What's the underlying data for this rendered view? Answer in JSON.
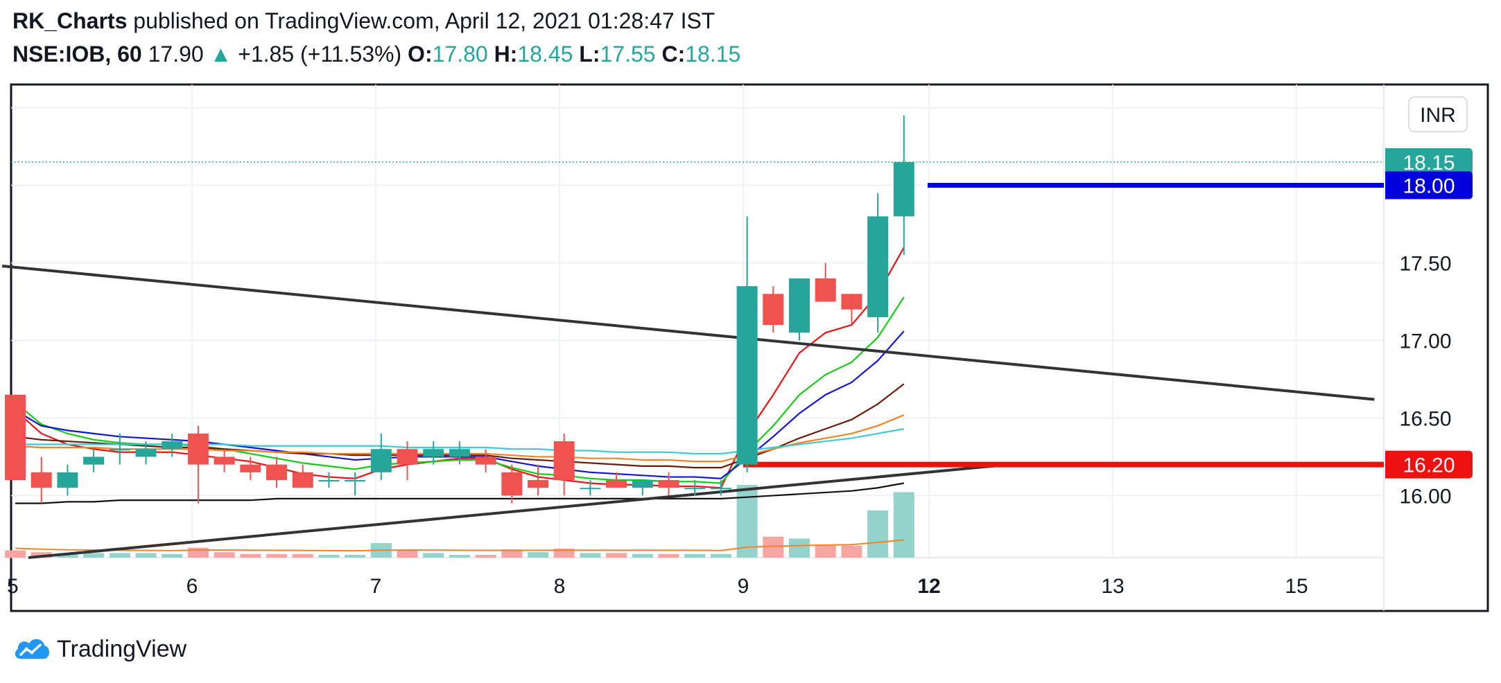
{
  "header": {
    "publisher": "RK_Charts",
    "published_text": "published on TradingView.com, April 12, 2021 01:28:47 IST",
    "symbol": "NSE:IOB, 60",
    "last": "17.90",
    "change": "+1.85 (+11.53%)",
    "o_label": "O:",
    "o_value": "17.80",
    "h_label": "H:",
    "h_value": "18.45",
    "l_label": "L:",
    "l_value": "17.55",
    "c_label": "C:",
    "c_value": "18.15"
  },
  "footer": {
    "brand": "TradingView"
  },
  "colors": {
    "up": "#26a69a",
    "down": "#ef5350",
    "up_vol": "#94d2cc",
    "down_vol": "#f7a5a3",
    "blue_level": "#0000dd",
    "red_level": "#ee1111"
  },
  "chart_data": {
    "type": "candlestick",
    "currency": "INR",
    "y_ticks": [
      "16.00",
      "16.50",
      "17.00",
      "17.50"
    ],
    "ylim": [
      15.6,
      18.65
    ],
    "x_ticks": [
      "6",
      "7",
      "8",
      "9",
      "12",
      "13",
      "15"
    ],
    "current_price_label": "18.15",
    "levels": [
      {
        "label": "18.00",
        "value": 18.0,
        "color": "#0000dd"
      },
      {
        "label": "16.20",
        "value": 16.2,
        "color": "#ee1111"
      }
    ],
    "candles": [
      {
        "o": 16.65,
        "h": 16.65,
        "l": 16.1,
        "c": 16.1
      },
      {
        "o": 16.15,
        "h": 16.25,
        "l": 15.95,
        "c": 16.05
      },
      {
        "o": 16.05,
        "h": 16.2,
        "l": 16.0,
        "c": 16.15
      },
      {
        "o": 16.2,
        "h": 16.3,
        "l": 16.15,
        "c": 16.25
      },
      {
        "o": 16.3,
        "h": 16.4,
        "l": 16.2,
        "c": 16.3
      },
      {
        "o": 16.25,
        "h": 16.35,
        "l": 16.2,
        "c": 16.3
      },
      {
        "o": 16.3,
        "h": 16.4,
        "l": 16.25,
        "c": 16.35
      },
      {
        "o": 16.4,
        "h": 16.45,
        "l": 15.95,
        "c": 16.2
      },
      {
        "o": 16.25,
        "h": 16.3,
        "l": 16.15,
        "c": 16.2
      },
      {
        "o": 16.2,
        "h": 16.25,
        "l": 16.1,
        "c": 16.15
      },
      {
        "o": 16.2,
        "h": 16.25,
        "l": 16.05,
        "c": 16.1
      },
      {
        "o": 16.15,
        "h": 16.2,
        "l": 16.05,
        "c": 16.05
      },
      {
        "o": 16.1,
        "h": 16.15,
        "l": 16.05,
        "c": 16.1
      },
      {
        "o": 16.1,
        "h": 16.15,
        "l": 16.0,
        "c": 16.1
      },
      {
        "o": 16.15,
        "h": 16.4,
        "l": 16.1,
        "c": 16.3
      },
      {
        "o": 16.3,
        "h": 16.35,
        "l": 16.1,
        "c": 16.2
      },
      {
        "o": 16.25,
        "h": 16.35,
        "l": 16.2,
        "c": 16.3
      },
      {
        "o": 16.25,
        "h": 16.35,
        "l": 16.2,
        "c": 16.3
      },
      {
        "o": 16.25,
        "h": 16.3,
        "l": 16.15,
        "c": 16.2
      },
      {
        "o": 16.15,
        "h": 16.2,
        "l": 15.95,
        "c": 16.0
      },
      {
        "o": 16.1,
        "h": 16.2,
        "l": 16.0,
        "c": 16.05
      },
      {
        "o": 16.35,
        "h": 16.4,
        "l": 16.0,
        "c": 16.1
      },
      {
        "o": 16.05,
        "h": 16.1,
        "l": 16.0,
        "c": 16.05
      },
      {
        "o": 16.1,
        "h": 16.15,
        "l": 16.05,
        "c": 16.05
      },
      {
        "o": 16.05,
        "h": 16.1,
        "l": 16.0,
        "c": 16.1
      },
      {
        "o": 16.1,
        "h": 16.15,
        "l": 16.0,
        "c": 16.05
      },
      {
        "o": 16.05,
        "h": 16.1,
        "l": 16.0,
        "c": 16.05
      },
      {
        "o": 16.05,
        "h": 16.1,
        "l": 16.0,
        "c": 16.05
      },
      {
        "o": 16.2,
        "h": 17.8,
        "l": 16.15,
        "c": 17.35
      },
      {
        "o": 17.3,
        "h": 17.35,
        "l": 17.05,
        "c": 17.1
      },
      {
        "o": 17.05,
        "h": 17.4,
        "l": 17.0,
        "c": 17.4
      },
      {
        "o": 17.4,
        "h": 17.5,
        "l": 17.25,
        "c": 17.25
      },
      {
        "o": 17.3,
        "h": 17.3,
        "l": 17.1,
        "c": 17.2
      },
      {
        "o": 17.15,
        "h": 17.95,
        "l": 17.05,
        "c": 17.8
      },
      {
        "o": 17.8,
        "h": 18.45,
        "l": 17.55,
        "c": 18.15
      }
    ],
    "volume": [
      {
        "v": 0.8,
        "dir": "down"
      },
      {
        "v": 0.6,
        "dir": "down"
      },
      {
        "v": 0.5,
        "dir": "up"
      },
      {
        "v": 0.5,
        "dir": "up"
      },
      {
        "v": 0.5,
        "dir": "up"
      },
      {
        "v": 0.5,
        "dir": "up"
      },
      {
        "v": 0.4,
        "dir": "up"
      },
      {
        "v": 1.1,
        "dir": "down"
      },
      {
        "v": 0.6,
        "dir": "down"
      },
      {
        "v": 0.4,
        "dir": "down"
      },
      {
        "v": 0.4,
        "dir": "down"
      },
      {
        "v": 0.4,
        "dir": "down"
      },
      {
        "v": 0.3,
        "dir": "up"
      },
      {
        "v": 0.3,
        "dir": "up"
      },
      {
        "v": 1.6,
        "dir": "up"
      },
      {
        "v": 0.8,
        "dir": "down"
      },
      {
        "v": 0.5,
        "dir": "up"
      },
      {
        "v": 0.3,
        "dir": "up"
      },
      {
        "v": 0.3,
        "dir": "down"
      },
      {
        "v": 0.9,
        "dir": "down"
      },
      {
        "v": 0.6,
        "dir": "up"
      },
      {
        "v": 1.0,
        "dir": "down"
      },
      {
        "v": 0.5,
        "dir": "up"
      },
      {
        "v": 0.5,
        "dir": "down"
      },
      {
        "v": 0.4,
        "dir": "up"
      },
      {
        "v": 0.4,
        "dir": "down"
      },
      {
        "v": 0.4,
        "dir": "up"
      },
      {
        "v": 0.4,
        "dir": "up"
      },
      {
        "v": 8.0,
        "dir": "up"
      },
      {
        "v": 2.3,
        "dir": "down"
      },
      {
        "v": 2.1,
        "dir": "up"
      },
      {
        "v": 1.4,
        "dir": "down"
      },
      {
        "v": 1.3,
        "dir": "down"
      },
      {
        "v": 5.2,
        "dir": "up"
      },
      {
        "v": 7.2,
        "dir": "up"
      }
    ],
    "moving_averages": [
      {
        "color": "#ee1111",
        "values": [
          16.55,
          16.4,
          16.33,
          16.3,
          16.28,
          16.28,
          16.28,
          16.26,
          16.24,
          16.22,
          16.18,
          16.14,
          16.12,
          16.11,
          16.17,
          16.2,
          16.22,
          16.24,
          16.24,
          16.17,
          16.12,
          16.1,
          16.08,
          16.07,
          16.07,
          16.06,
          16.06,
          16.05,
          16.4,
          16.65,
          16.92,
          17.05,
          17.1,
          17.3,
          17.6
        ]
      },
      {
        "color": "#11cc11",
        "values": [
          16.6,
          16.46,
          16.4,
          16.36,
          16.34,
          16.33,
          16.33,
          16.32,
          16.3,
          16.27,
          16.24,
          16.21,
          16.19,
          16.17,
          16.2,
          16.21,
          16.22,
          16.23,
          16.23,
          16.18,
          16.14,
          16.13,
          16.11,
          16.1,
          16.1,
          16.09,
          16.09,
          16.08,
          16.28,
          16.45,
          16.65,
          16.78,
          16.86,
          17.02,
          17.28
        ]
      },
      {
        "color": "#1111dd",
        "values": [
          16.55,
          16.45,
          16.42,
          16.4,
          16.38,
          16.37,
          16.36,
          16.35,
          16.33,
          16.31,
          16.29,
          16.27,
          16.25,
          16.23,
          16.24,
          16.25,
          16.25,
          16.25,
          16.25,
          16.22,
          16.19,
          16.17,
          16.15,
          16.14,
          16.13,
          16.12,
          16.12,
          16.11,
          16.24,
          16.38,
          16.53,
          16.65,
          16.73,
          16.87,
          17.06
        ]
      },
      {
        "color": "#6b1a0a",
        "values": [
          16.38,
          16.36,
          16.35,
          16.34,
          16.33,
          16.32,
          16.31,
          16.31,
          16.3,
          16.29,
          16.28,
          16.27,
          16.27,
          16.26,
          16.26,
          16.26,
          16.26,
          16.26,
          16.26,
          16.24,
          16.23,
          16.22,
          16.21,
          16.2,
          16.19,
          16.19,
          16.18,
          16.18,
          16.24,
          16.3,
          16.37,
          16.43,
          16.49,
          16.59,
          16.72
        ]
      },
      {
        "color": "#f58220",
        "values": [
          16.32,
          16.31,
          16.31,
          16.31,
          16.3,
          16.3,
          16.3,
          16.3,
          16.29,
          16.29,
          16.28,
          16.28,
          16.27,
          16.27,
          16.27,
          16.27,
          16.27,
          16.27,
          16.27,
          16.26,
          16.25,
          16.25,
          16.24,
          16.24,
          16.23,
          16.23,
          16.22,
          16.22,
          16.26,
          16.3,
          16.34,
          16.37,
          16.4,
          16.45,
          16.52
        ]
      },
      {
        "color": "#3fc9d8",
        "values": [
          16.33,
          16.33,
          16.33,
          16.33,
          16.33,
          16.33,
          16.33,
          16.33,
          16.33,
          16.32,
          16.32,
          16.32,
          16.32,
          16.32,
          16.32,
          16.31,
          16.31,
          16.31,
          16.31,
          16.3,
          16.3,
          16.29,
          16.29,
          16.28,
          16.28,
          16.28,
          16.27,
          16.27,
          16.29,
          16.31,
          16.33,
          16.35,
          16.37,
          16.4,
          16.43
        ]
      },
      {
        "color": "#111111",
        "values": [
          15.95,
          15.95,
          15.96,
          15.96,
          15.97,
          15.97,
          15.97,
          15.97,
          15.97,
          15.97,
          15.98,
          15.98,
          15.98,
          15.98,
          15.98,
          15.98,
          15.98,
          15.98,
          15.98,
          15.98,
          15.98,
          15.98,
          15.98,
          15.98,
          15.98,
          15.98,
          15.98,
          15.98,
          15.99,
          16.0,
          16.01,
          16.02,
          16.03,
          16.05,
          16.08
        ]
      }
    ],
    "trendlines": [
      {
        "x1": -0.5,
        "y1": 17.48,
        "x2": 52,
        "y2": 16.62,
        "color": "#333333"
      },
      {
        "x1": 0.5,
        "y1": 15.6,
        "x2": 38,
        "y2": 16.2,
        "color": "#333333"
      }
    ]
  }
}
